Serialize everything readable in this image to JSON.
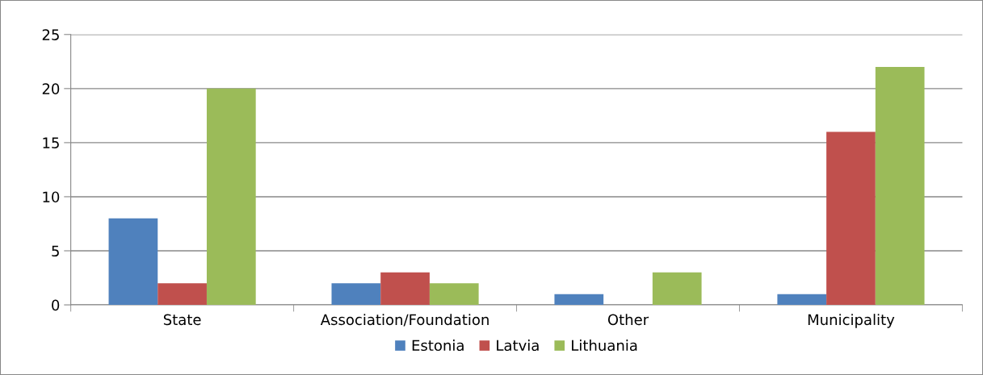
{
  "chart_data": {
    "type": "bar",
    "categories": [
      "State",
      "Association/Foundation",
      "Other",
      "Municipality"
    ],
    "series": [
      {
        "name": "Estonia",
        "color": "#4f81bd",
        "values": [
          8,
          2,
          1,
          1
        ]
      },
      {
        "name": "Latvia",
        "color": "#c0504d",
        "values": [
          2,
          3,
          0,
          16
        ]
      },
      {
        "name": "Lithuania",
        "color": "#9bbb59",
        "values": [
          20,
          2,
          3,
          22
        ]
      }
    ],
    "ylim": [
      0,
      25
    ],
    "yticks": [
      0,
      5,
      10,
      15,
      20,
      25
    ],
    "grid": "y",
    "legend": "bottom"
  }
}
